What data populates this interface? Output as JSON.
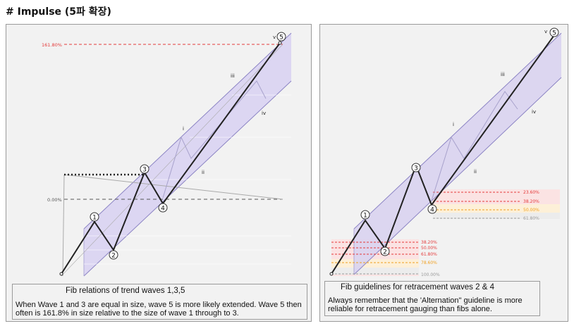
{
  "title": "# Impulse  (5파 확장)",
  "left_panel": {
    "fib_levels": [
      "161.80%",
      "0.00%"
    ],
    "wave_labels": [
      "1",
      "2",
      "3",
      "4",
      "5",
      "v",
      "i",
      "ii",
      "iii",
      "iv"
    ],
    "caption_title": "Fib relations of trend waves 1,3,5",
    "caption_text": "When Wave 1 and 3 are equal in size, wave 5 is more likely extended. Wave 5 then often is 161.8% in size relative to the size of wave 1 through to 3."
  },
  "right_panel": {
    "wave4_levels": [
      "23.60%",
      "38.20%",
      "50.00%",
      "61.80%"
    ],
    "wave2_levels": [
      "38.20%",
      "50.00%",
      "61.80%",
      "78.60%",
      "100.00%"
    ],
    "wave_labels": [
      "1",
      "2",
      "3",
      "4",
      "5",
      "v",
      "i",
      "ii",
      "iii",
      "iv"
    ],
    "caption_title": "Fib guidelines for retracement waves 2 & 4",
    "caption_text": "Always remember that the 'Alternation\" guideline is more reliable for retracement gauging than fibs alone."
  },
  "colors": {
    "channel_fill": "#d9d3f0",
    "channel_edge": "#8c84c4",
    "fib_red": "#e43b3b",
    "fib_orange": "#f0a020",
    "fib_gray": "#9a9a9a"
  }
}
